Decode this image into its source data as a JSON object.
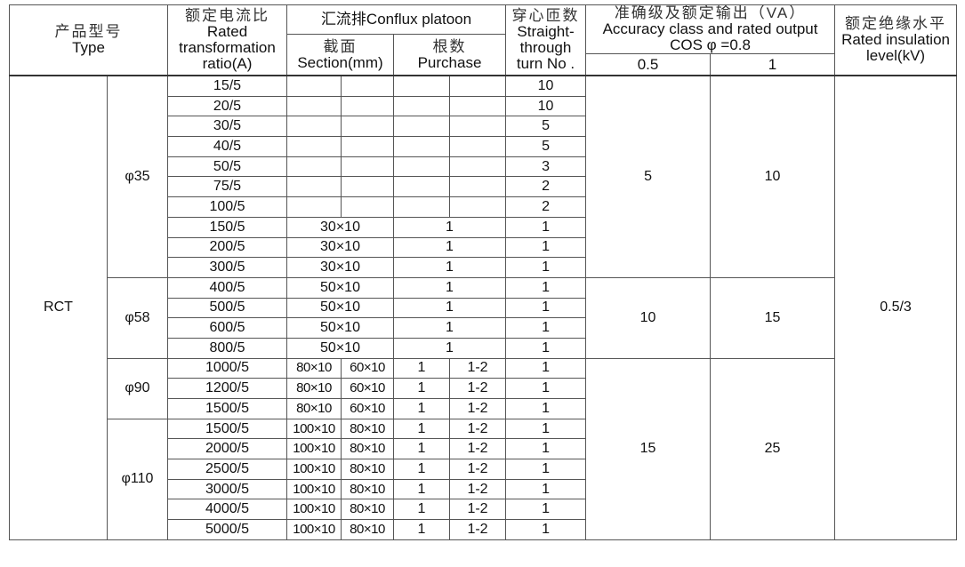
{
  "header": {
    "type_zh": "产品型号",
    "type_en": "Type",
    "ratio_zh": "额定电流比",
    "ratio_en1": "Rated",
    "ratio_en2": "transformation",
    "ratio_en3": "ratio(A)",
    "conflux": "汇流排Conflux platoon",
    "section_zh": "截面",
    "section_en": "Section(mm)",
    "purchase_zh": "根数",
    "purchase_en": "Purchase",
    "turns_zh": "穿心匝数",
    "turns_en1": "Straight-",
    "turns_en2": "through",
    "turns_en3": "turn No .",
    "accuracy_zh": "准确级及额定输出（VA）",
    "accuracy_en": "Accuracy class and rated output",
    "accuracy_cos": "COS φ =0.8",
    "class_05": "0.5",
    "class_1": "1",
    "insulation_zh": "额定绝缘水平",
    "insulation_en1": "Rated insulation",
    "insulation_en2": "level(kV)"
  },
  "type": "RCT",
  "insulation": "0.5/3",
  "groups": [
    {
      "diameter": "φ35",
      "rows": [
        {
          "ratio": "15/5",
          "section": [
            "",
            ""
          ],
          "purchase": [
            "",
            ""
          ],
          "turns": "10"
        },
        {
          "ratio": "20/5",
          "section": [
            "",
            ""
          ],
          "purchase": [
            "",
            ""
          ],
          "turns": "10"
        },
        {
          "ratio": "30/5",
          "section": [
            "",
            ""
          ],
          "purchase": [
            "",
            ""
          ],
          "turns": "5"
        },
        {
          "ratio": "40/5",
          "section": [
            "",
            ""
          ],
          "purchase": [
            "",
            ""
          ],
          "turns": "5"
        },
        {
          "ratio": "50/5",
          "section": [
            "",
            ""
          ],
          "purchase": [
            "",
            ""
          ],
          "turns": "3"
        },
        {
          "ratio": "75/5",
          "section": [
            "",
            ""
          ],
          "purchase": [
            "",
            ""
          ],
          "turns": "2"
        },
        {
          "ratio": "100/5",
          "section": [
            "",
            ""
          ],
          "purchase": [
            "",
            ""
          ],
          "turns": "2"
        },
        {
          "ratio": "150/5",
          "section": [
            "30×10"
          ],
          "purchase": [
            "1"
          ],
          "turns": "1"
        },
        {
          "ratio": "200/5",
          "section": [
            "30×10"
          ],
          "purchase": [
            "1"
          ],
          "turns": "1"
        },
        {
          "ratio": "300/5",
          "section": [
            "30×10"
          ],
          "purchase": [
            "1"
          ],
          "turns": "1"
        }
      ]
    },
    {
      "diameter": "φ58",
      "rows": [
        {
          "ratio": "400/5",
          "section": [
            "50×10"
          ],
          "purchase": [
            "1"
          ],
          "turns": "1"
        },
        {
          "ratio": "500/5",
          "section": [
            "50×10"
          ],
          "purchase": [
            "1"
          ],
          "turns": "1"
        },
        {
          "ratio": "600/5",
          "section": [
            "50×10"
          ],
          "purchase": [
            "1"
          ],
          "turns": "1"
        },
        {
          "ratio": "800/5",
          "section": [
            "50×10"
          ],
          "purchase": [
            "1"
          ],
          "turns": "1"
        }
      ]
    },
    {
      "diameter": "φ90",
      "rows": [
        {
          "ratio": "1000/5",
          "section": [
            "80×10",
            "60×10"
          ],
          "purchase": [
            "1",
            "1-2"
          ],
          "turns": "1"
        },
        {
          "ratio": "1200/5",
          "section": [
            "80×10",
            "60×10"
          ],
          "purchase": [
            "1",
            "1-2"
          ],
          "turns": "1"
        },
        {
          "ratio": "1500/5",
          "section": [
            "80×10",
            "60×10"
          ],
          "purchase": [
            "1",
            "1-2"
          ],
          "turns": "1"
        }
      ]
    },
    {
      "diameter": "φ110",
      "rows": [
        {
          "ratio": "1500/5",
          "section": [
            "100×10",
            "80×10"
          ],
          "purchase": [
            "1",
            "1-2"
          ],
          "turns": "1"
        },
        {
          "ratio": "2000/5",
          "section": [
            "100×10",
            "80×10"
          ],
          "purchase": [
            "1",
            "1-2"
          ],
          "turns": "1"
        },
        {
          "ratio": "2500/5",
          "section": [
            "100×10",
            "80×10"
          ],
          "purchase": [
            "1",
            "1-2"
          ],
          "turns": "1"
        },
        {
          "ratio": "3000/5",
          "section": [
            "100×10",
            "80×10"
          ],
          "purchase": [
            "1",
            "1-2"
          ],
          "turns": "1"
        },
        {
          "ratio": "4000/5",
          "section": [
            "100×10",
            "80×10"
          ],
          "purchase": [
            "1",
            "1-2"
          ],
          "turns": "1"
        },
        {
          "ratio": "5000/5",
          "section": [
            "100×10",
            "80×10"
          ],
          "purchase": [
            "1",
            "1-2"
          ],
          "turns": "1"
        }
      ]
    }
  ],
  "accuracy": [
    {
      "rows": 10,
      "class_05": "5",
      "class_1": "10"
    },
    {
      "rows": 4,
      "class_05": "10",
      "class_1": "15"
    },
    {
      "rows": 9,
      "class_05": "15",
      "class_1": "25"
    }
  ]
}
